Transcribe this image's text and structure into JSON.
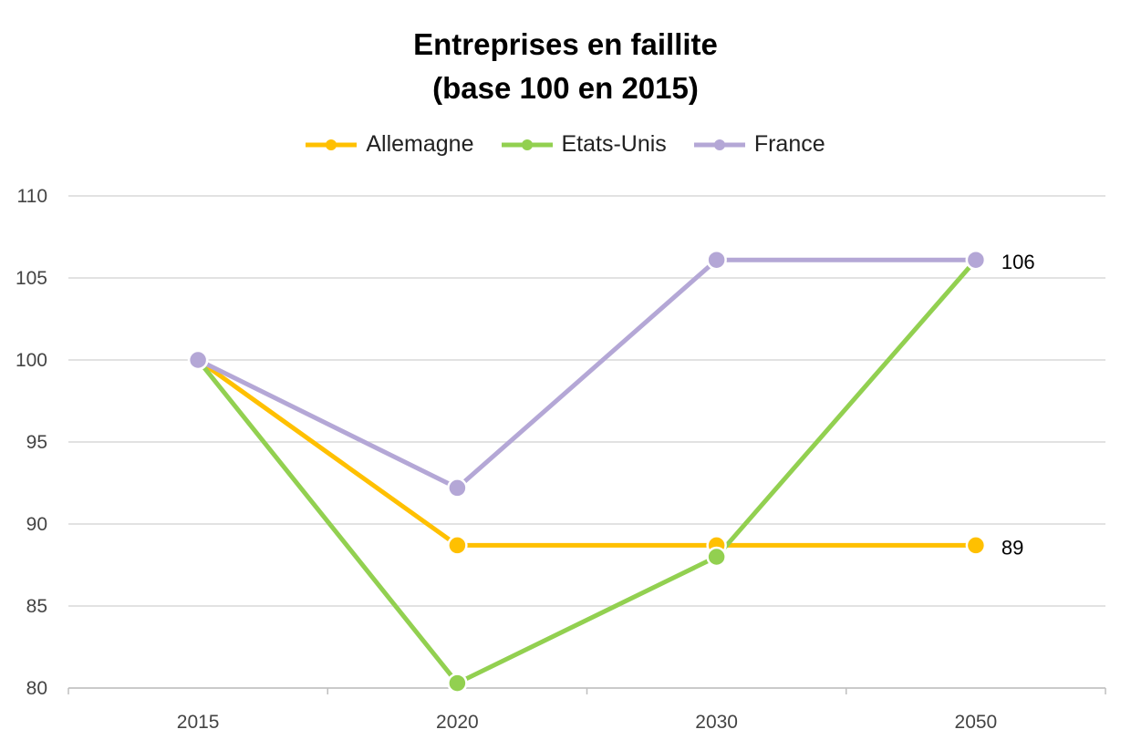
{
  "chart_data": {
    "type": "line",
    "title": "Entreprises  en faillite",
    "subtitle": "(base 100 en 2015)",
    "categories": [
      "2015",
      "2020",
      "2030",
      "2050"
    ],
    "ylim": [
      80,
      110
    ],
    "yticks": [
      80,
      85,
      90,
      95,
      100,
      105,
      110
    ],
    "grid": true,
    "legend_position": "top",
    "series": [
      {
        "name": "Allemagne",
        "color": "#FFC000",
        "values": [
          100,
          88.7,
          88.7,
          88.7
        ]
      },
      {
        "name": "Etats-Unis",
        "color": "#92D050",
        "values": [
          100,
          80.3,
          88.0,
          106.1
        ]
      },
      {
        "name": "France",
        "color": "#B4A7D6",
        "values": [
          100,
          92.2,
          106.1,
          106.1
        ]
      }
    ],
    "annotations": [
      {
        "series": "France",
        "category": "2050",
        "text": "106"
      },
      {
        "series": "Allemagne",
        "category": "2050",
        "text": "89"
      }
    ]
  }
}
